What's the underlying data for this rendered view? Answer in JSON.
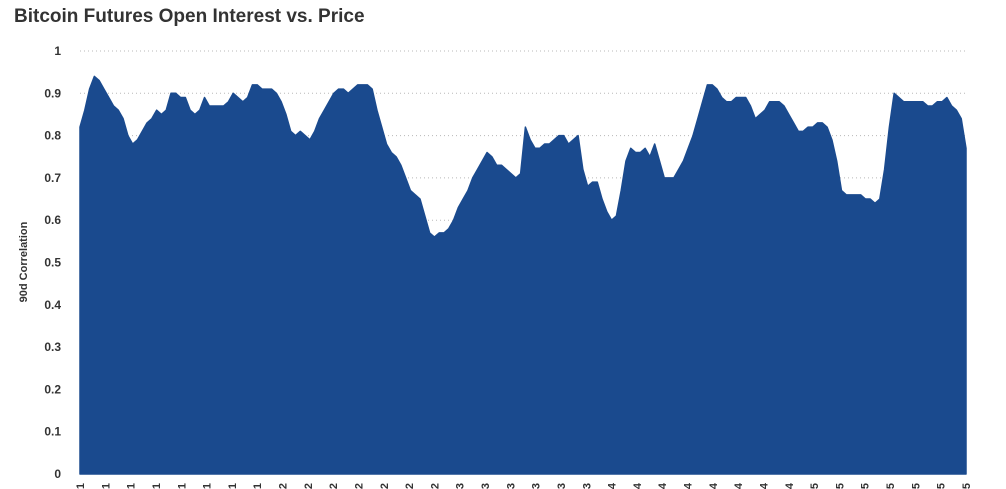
{
  "chart_data": {
    "type": "area",
    "title": "Bitcoin Futures Open Interest vs. Price",
    "xlabel": "",
    "ylabel": "90d Correlation",
    "ylim": [
      0,
      1
    ],
    "yticks": [
      0,
      0.1,
      0.2,
      0.3,
      0.4,
      0.5,
      0.6,
      0.7,
      0.8,
      0.9,
      1
    ],
    "grid": true,
    "color": "#1a4a8e",
    "x_tick_labels": [
      "1",
      "1",
      "1",
      "1",
      "1",
      "1",
      "1",
      "1",
      "2",
      "2",
      "2",
      "2",
      "2",
      "2",
      "2",
      "3",
      "3",
      "3",
      "3",
      "3",
      "3",
      "4",
      "4",
      "4",
      "4",
      "4",
      "4",
      "4",
      "4",
      "5",
      "5",
      "5",
      "5",
      "5",
      "5",
      "5"
    ],
    "values": [
      0.82,
      0.86,
      0.91,
      0.94,
      0.93,
      0.91,
      0.89,
      0.87,
      0.86,
      0.84,
      0.8,
      0.78,
      0.79,
      0.81,
      0.83,
      0.84,
      0.86,
      0.85,
      0.86,
      0.9,
      0.9,
      0.89,
      0.89,
      0.86,
      0.85,
      0.86,
      0.89,
      0.87,
      0.87,
      0.87,
      0.87,
      0.88,
      0.9,
      0.89,
      0.88,
      0.89,
      0.92,
      0.92,
      0.91,
      0.91,
      0.91,
      0.9,
      0.88,
      0.85,
      0.81,
      0.8,
      0.81,
      0.8,
      0.79,
      0.81,
      0.84,
      0.86,
      0.88,
      0.9,
      0.91,
      0.91,
      0.9,
      0.91,
      0.92,
      0.92,
      0.92,
      0.91,
      0.86,
      0.82,
      0.78,
      0.76,
      0.75,
      0.73,
      0.7,
      0.67,
      0.66,
      0.65,
      0.61,
      0.57,
      0.56,
      0.57,
      0.57,
      0.58,
      0.6,
      0.63,
      0.65,
      0.67,
      0.7,
      0.72,
      0.74,
      0.76,
      0.75,
      0.73,
      0.73,
      0.72,
      0.71,
      0.7,
      0.71,
      0.82,
      0.79,
      0.77,
      0.77,
      0.78,
      0.78,
      0.79,
      0.8,
      0.8,
      0.78,
      0.79,
      0.8,
      0.72,
      0.68,
      0.69,
      0.69,
      0.65,
      0.62,
      0.6,
      0.61,
      0.67,
      0.74,
      0.77,
      0.76,
      0.76,
      0.77,
      0.75,
      0.78,
      0.74,
      0.7,
      0.7,
      0.7,
      0.72,
      0.74,
      0.77,
      0.8,
      0.84,
      0.88,
      0.92,
      0.92,
      0.91,
      0.89,
      0.88,
      0.88,
      0.89,
      0.89,
      0.89,
      0.87,
      0.84,
      0.85,
      0.86,
      0.88,
      0.88,
      0.88,
      0.87,
      0.85,
      0.83,
      0.81,
      0.81,
      0.82,
      0.82,
      0.83,
      0.83,
      0.82,
      0.79,
      0.74,
      0.67,
      0.66,
      0.66,
      0.66,
      0.66,
      0.65,
      0.65,
      0.64,
      0.65,
      0.72,
      0.82,
      0.9,
      0.89,
      0.88,
      0.88,
      0.88,
      0.88,
      0.88,
      0.87,
      0.87,
      0.88,
      0.88,
      0.89,
      0.87,
      0.86,
      0.84,
      0.77
    ]
  }
}
